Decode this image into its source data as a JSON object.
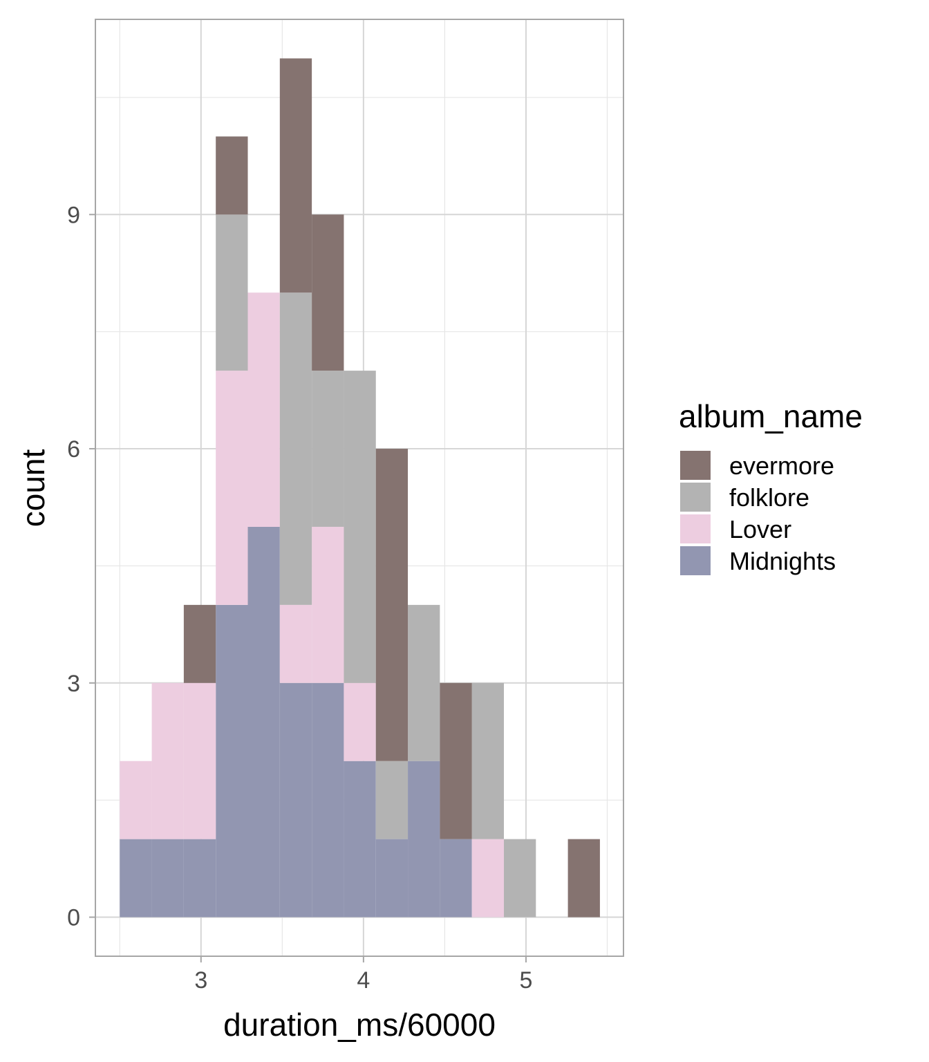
{
  "chart_data": {
    "type": "bar",
    "subtype": "stacked-histogram",
    "xlabel": "duration_ms/60000",
    "ylabel": "count",
    "xlim": [
      2.35,
      5.6
    ],
    "ylim": [
      -0.5,
      11.5
    ],
    "x_ticks": [
      3,
      4,
      5
    ],
    "y_ticks": [
      0,
      3,
      6,
      9
    ],
    "grid": true,
    "legend": {
      "title": "album_name",
      "position": "right"
    },
    "bin_width": 0.197,
    "bin_start": 2.5,
    "bins": [
      2.598,
      2.795,
      2.992,
      3.189,
      3.386,
      3.583,
      3.78,
      3.977,
      4.174,
      4.371,
      4.568,
      4.765,
      4.962,
      5.159,
      5.356
    ],
    "series": [
      {
        "name": "evermore",
        "color": "#857370",
        "values": [
          0,
          0,
          1,
          1,
          0,
          3,
          2,
          0,
          4,
          0,
          2,
          0,
          0,
          0,
          1
        ]
      },
      {
        "name": "folklore",
        "color": "#b3b3b3",
        "values": [
          0,
          0,
          0,
          2,
          0,
          4,
          2,
          4,
          1,
          2,
          0,
          2,
          1,
          0,
          0
        ]
      },
      {
        "name": "Lover",
        "color": "#edcde0",
        "values": [
          1,
          2,
          2,
          3,
          3,
          1,
          2,
          1,
          0,
          0,
          0,
          1,
          0,
          0,
          0
        ]
      },
      {
        "name": "Midnights",
        "color": "#9296b1",
        "values": [
          1,
          1,
          1,
          4,
          5,
          3,
          3,
          2,
          1,
          2,
          1,
          0,
          0,
          0,
          0
        ]
      }
    ]
  }
}
